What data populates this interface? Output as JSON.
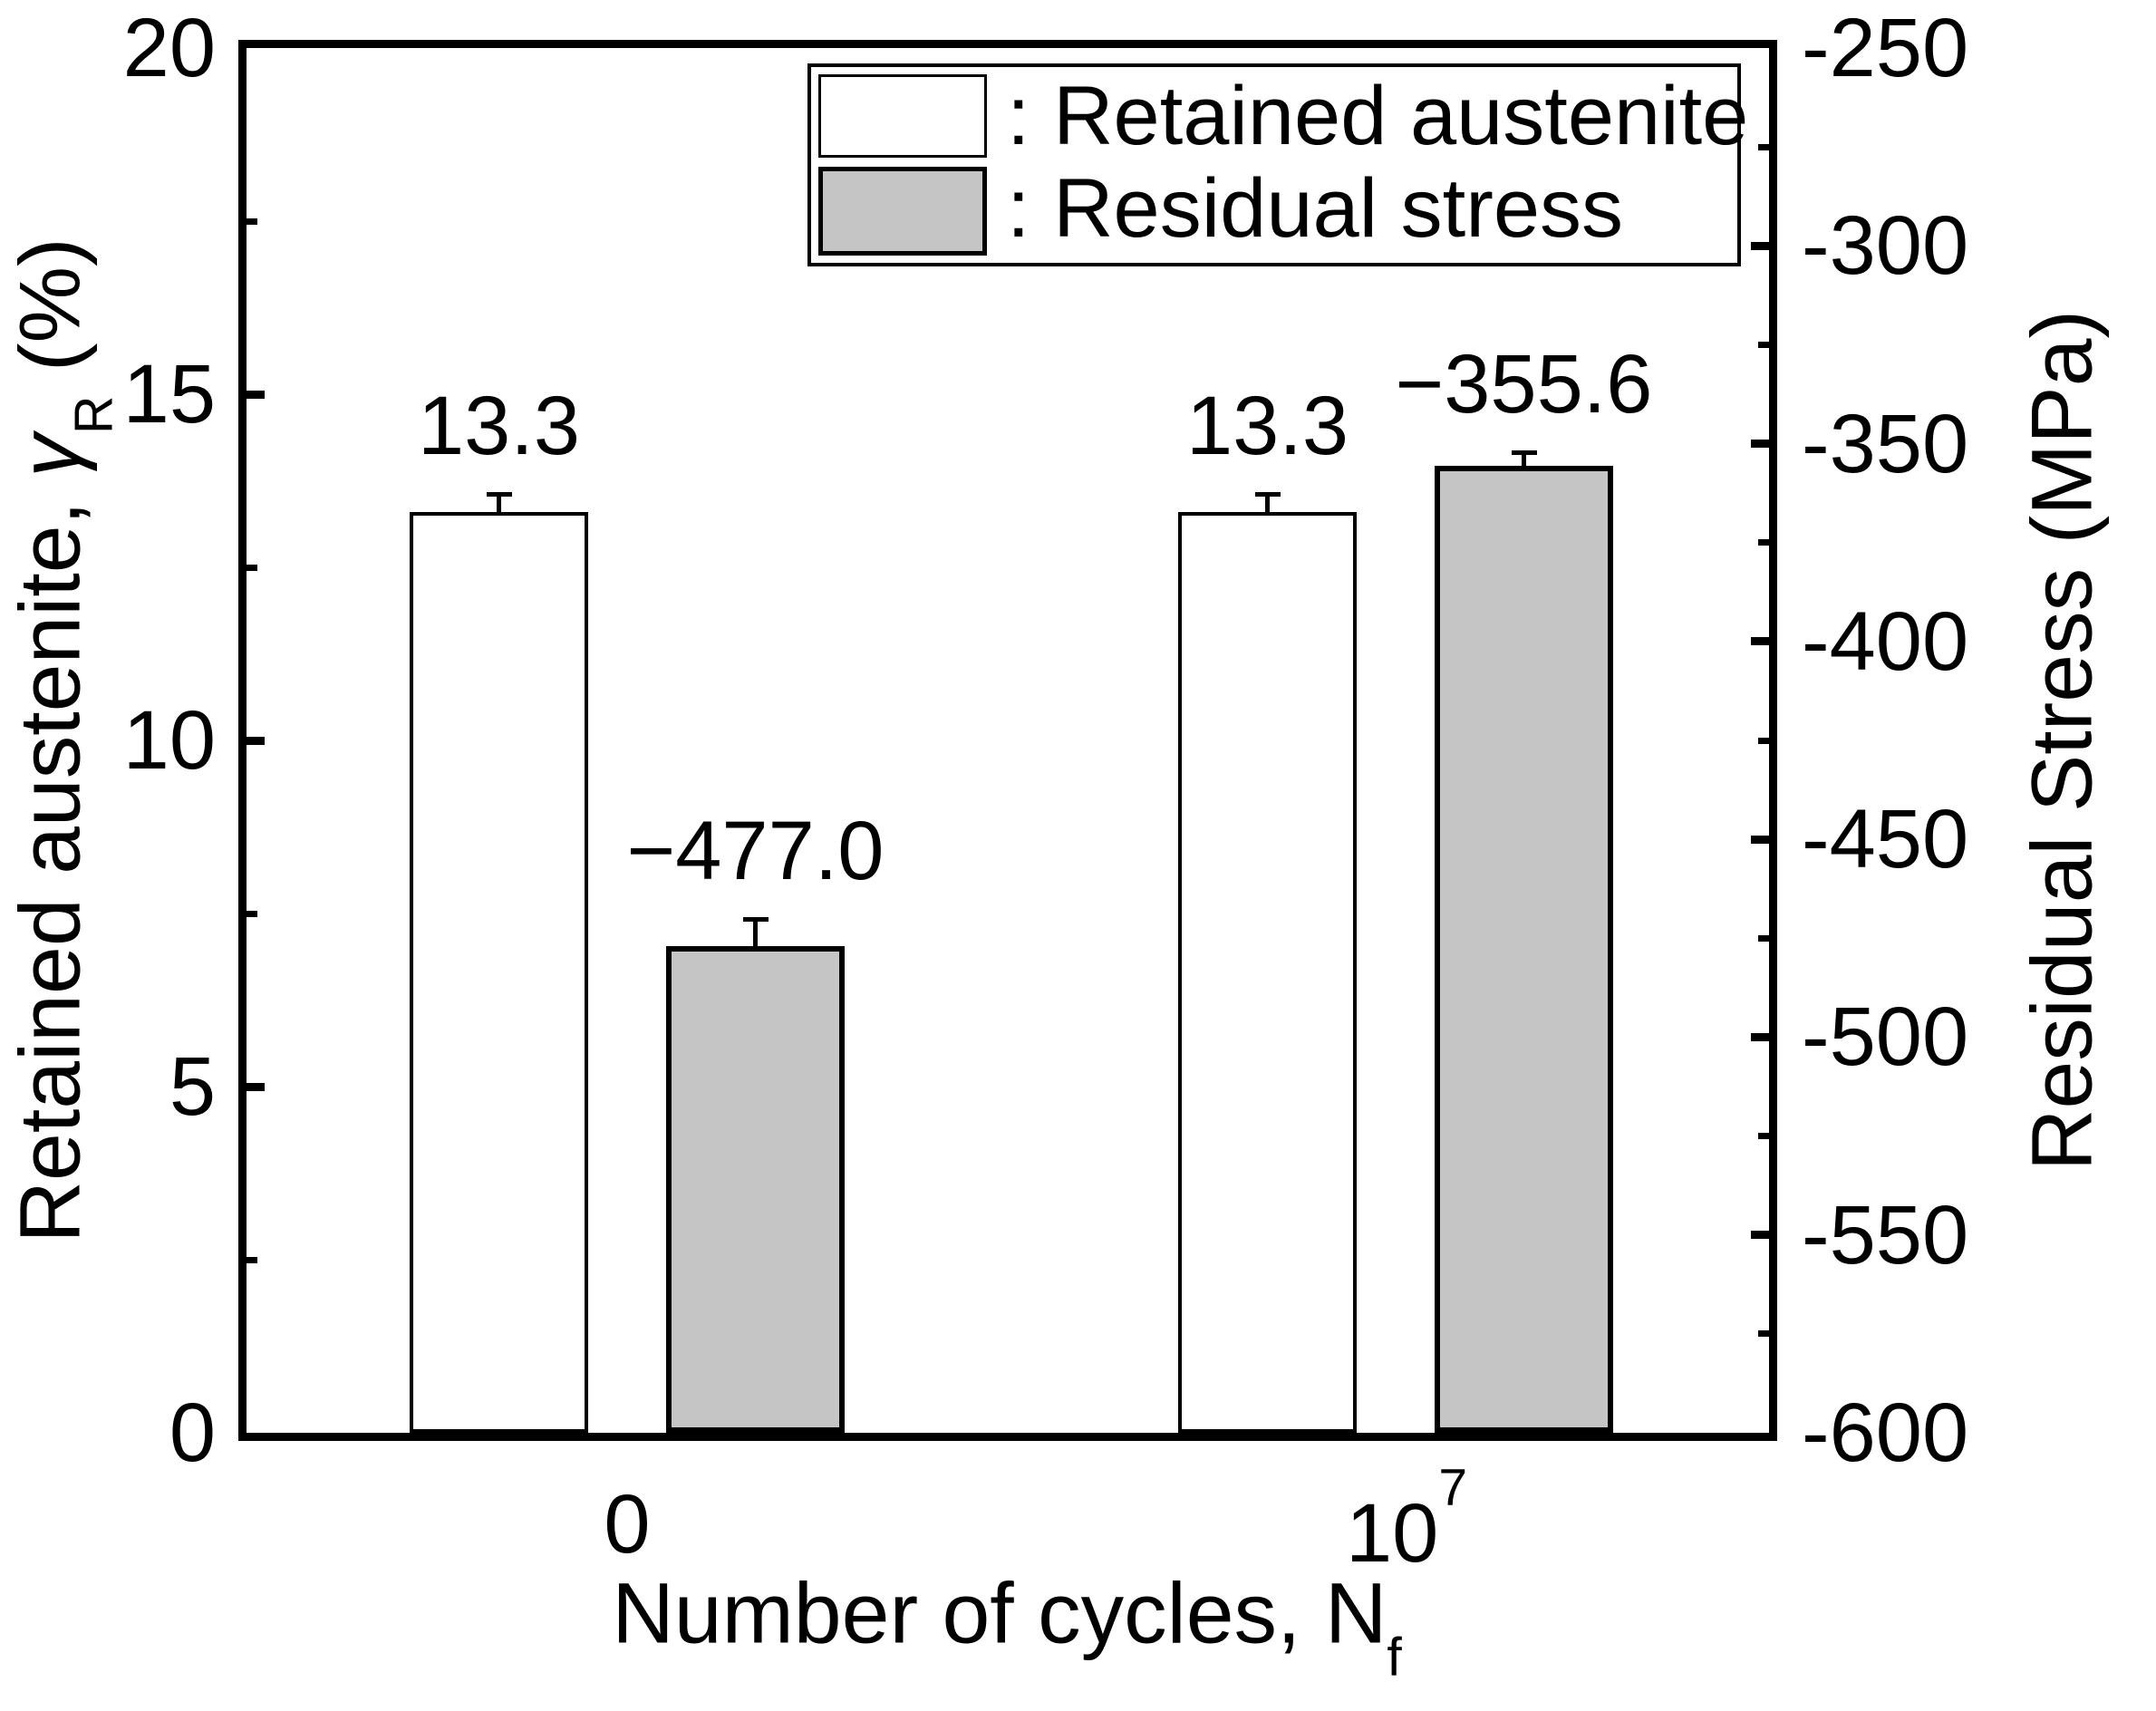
{
  "chart_data": {
    "type": "bar",
    "categories": [
      "0",
      "10^7"
    ],
    "series": [
      {
        "name": "Retained austenite",
        "axis": "left",
        "fill": "#ffffff",
        "values": [
          13.3,
          13.3
        ],
        "errors": [
          0.26,
          0.26
        ],
        "value_labels": [
          "13.3",
          "13.3"
        ]
      },
      {
        "name": "Residual stress",
        "axis": "right",
        "fill": "#c5c5c5",
        "values": [
          -477.0,
          -355.6
        ],
        "errors": [
          6.8,
          3.4
        ],
        "value_labels": [
          "−477.0",
          "−355.6"
        ]
      }
    ],
    "left_axis": {
      "min": 0,
      "max": 20,
      "tick_values": [
        0,
        5,
        10,
        15,
        20
      ],
      "tick_labels": [
        "0",
        "5",
        "10",
        "15",
        "20"
      ],
      "major_tick_marks": [
        5,
        10,
        15
      ],
      "minor_tick_marks": [
        2.5,
        7.5,
        12.5,
        17.5
      ]
    },
    "right_axis": {
      "min": -600,
      "max": -250,
      "tick_values": [
        -250,
        -300,
        -350,
        -400,
        -450,
        -500,
        -550,
        -600
      ],
      "tick_labels": [
        "-250",
        "-300",
        "-350",
        "-400",
        "-450",
        "-500",
        "-550",
        "-600"
      ],
      "major_tick_marks": [
        -300,
        -350,
        -400,
        -450,
        -500,
        -550
      ],
      "minor_tick_marks": [
        -275,
        -325,
        -375,
        -425,
        -475,
        -525,
        -575
      ]
    },
    "legend": [
      {
        "text": ": Retained austenite"
      },
      {
        "text": ": Residual stress"
      }
    ],
    "grid": false,
    "legend_position": "top-center-inside"
  },
  "labels": {
    "y_left_pre": "Retained austenite, ",
    "y_left_sym": "γ",
    "y_left_sub": "R",
    "y_left_post": " (%)",
    "y_right": "Residual Stress (MPa)",
    "x_pre": "Number of cycles, N",
    "x_sub": "f",
    "x_tick_0": "0",
    "x_tick_1_base": "10",
    "x_tick_1_sup": "7"
  },
  "colors": {
    "foreground": "#000000",
    "background": "#ffffff",
    "gray_fill": "#c5c5c5",
    "white_fill": "#ffffff"
  }
}
